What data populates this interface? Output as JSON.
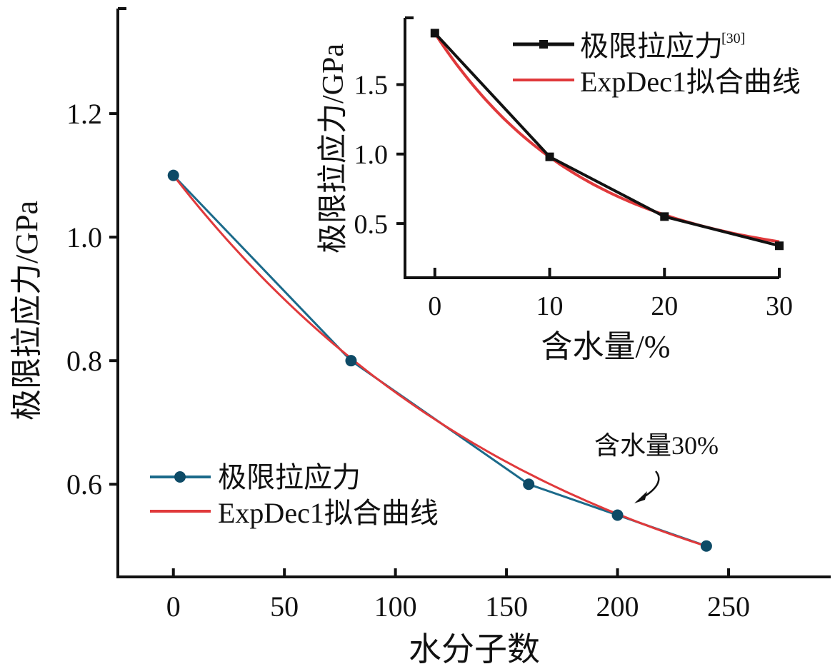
{
  "chart_data": [
    {
      "type": "line",
      "title": "",
      "xlabel": "水分子数",
      "ylabel": "极限拉应力/GPa",
      "xlim": [
        -25,
        296
      ],
      "ylim": [
        0.45,
        1.37
      ],
      "xticks": [
        0,
        50,
        100,
        150,
        200,
        250
      ],
      "xtick_labels": [
        "0",
        "50",
        "100",
        "150",
        "200",
        "250"
      ],
      "yticks": [
        0.6,
        0.8,
        1.0,
        1.2
      ],
      "ytick_labels": [
        "0.6",
        "0.8",
        "1.0",
        "1.2"
      ],
      "grid": false,
      "legend_position": "bottom-left",
      "series": [
        {
          "name": "极限拉应力",
          "x": [
            0,
            80,
            160,
            200,
            240
          ],
          "y": [
            1.1,
            0.8,
            0.6,
            0.55,
            0.5
          ],
          "color": "#1b6a8a",
          "marker": "circle"
        },
        {
          "name": "ExpDec1拟合曲线",
          "fit": {
            "y0": 0.3,
            "A": 0.8,
            "t": 173
          },
          "x_range": [
            0,
            240
          ],
          "color": "#e0393b"
        }
      ],
      "annotations": [
        {
          "text": "含水量30%",
          "points_to_x": 200,
          "points_to_y": 0.55
        }
      ]
    },
    {
      "type": "line",
      "title": "",
      "xlabel": "含水量/%",
      "ylabel": "极限拉应力/GPa",
      "xlim": [
        -2.6,
        30
      ],
      "ylim": [
        0.11,
        1.98
      ],
      "xticks": [
        0,
        10,
        20,
        30
      ],
      "xtick_labels": [
        "0",
        "10",
        "20",
        "30"
      ],
      "yticks": [
        0.5,
        1.0,
        1.5
      ],
      "ytick_labels": [
        "0.5",
        "1.0",
        "1.5"
      ],
      "grid": false,
      "legend_position": "top-right",
      "series": [
        {
          "name": "极限拉应力",
          "name_sup": "[30]",
          "x": [
            0,
            10,
            20,
            30
          ],
          "y": [
            1.87,
            0.98,
            0.55,
            0.34
          ],
          "color": "#111111",
          "marker": "square"
        },
        {
          "name": "ExpDec1拟合曲线",
          "fit": {
            "y0": 0.2,
            "A": 1.67,
            "t": 13.1
          },
          "x_range": [
            0,
            30
          ],
          "color": "#e0393b"
        }
      ]
    }
  ]
}
